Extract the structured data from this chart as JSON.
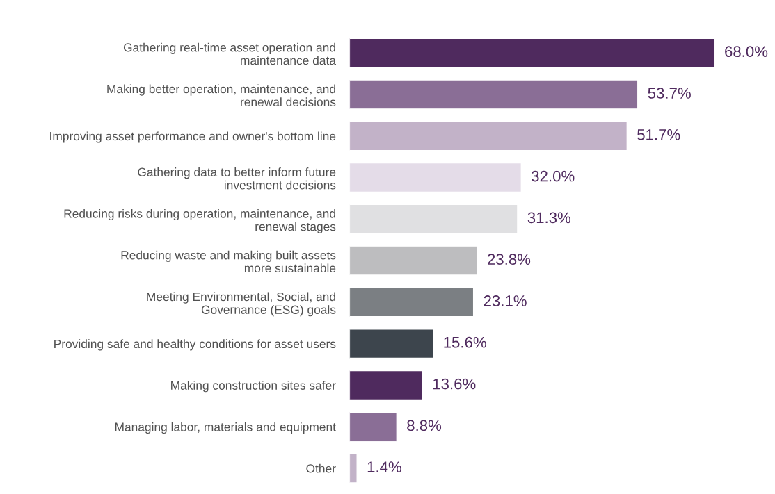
{
  "chart_data": {
    "type": "bar",
    "orientation": "horizontal",
    "categories": [
      "Gathering real-time asset operation and\nmaintenance data",
      "Making better operation, maintenance, and\nrenewal decisions",
      "Improving asset performance and owner's bottom line",
      "Gathering data to better inform future\ninvestment decisions",
      "Reducing risks during operation, maintenance, and\nrenewal stages",
      "Reducing waste and making built assets\nmore sustainable",
      "Meeting Environmental, Social, and\nGovernance (ESG) goals",
      "Providing safe and healthy conditions for asset users",
      "Making construction sites safer",
      "Managing labor, materials and equipment",
      "Other"
    ],
    "values": [
      68.0,
      53.7,
      51.7,
      32.0,
      31.3,
      23.8,
      23.1,
      15.6,
      13.6,
      8.8,
      1.4
    ],
    "value_labels": [
      "68.0%",
      "53.7%",
      "51.7%",
      "32.0%",
      "31.3%",
      "23.8%",
      "23.1%",
      "15.6%",
      "13.6%",
      "8.8%",
      "1.4%"
    ],
    "colors": [
      "#4f2a5e",
      "#8a6e96",
      "#c2b2c8",
      "#e4dce8",
      "#e0e0e2",
      "#bdbdbf",
      "#7b7f83",
      "#3d454d",
      "#4f2a5e",
      "#8a6e96",
      "#c2b2c8"
    ],
    "grid": false,
    "legend": false
  }
}
